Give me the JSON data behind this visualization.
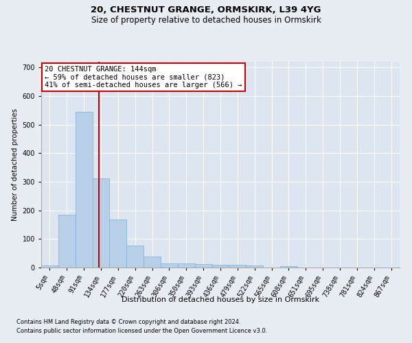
{
  "title1": "20, CHESTNUT GRANGE, ORMSKIRK, L39 4YG",
  "title2": "Size of property relative to detached houses in Ormskirk",
  "xlabel": "Distribution of detached houses by size in Ormskirk",
  "ylabel": "Number of detached properties",
  "categories": [
    "5sqm",
    "48sqm",
    "91sqm",
    "134sqm",
    "177sqm",
    "220sqm",
    "263sqm",
    "306sqm",
    "350sqm",
    "393sqm",
    "436sqm",
    "479sqm",
    "522sqm",
    "565sqm",
    "608sqm",
    "651sqm",
    "695sqm",
    "738sqm",
    "781sqm",
    "824sqm",
    "867sqm"
  ],
  "values": [
    8,
    186,
    545,
    313,
    168,
    77,
    39,
    15,
    14,
    13,
    9,
    10,
    8,
    0,
    5,
    0,
    0,
    0,
    0,
    0,
    0
  ],
  "bar_color": "#b8cfe8",
  "bar_edge_color": "#7aafd4",
  "vline_x": 3,
  "vline_color": "#cc0000",
  "annotation_text": "20 CHESTNUT GRANGE: 144sqm\n← 59% of detached houses are smaller (823)\n41% of semi-detached houses are larger (566) →",
  "annotation_box_color": "white",
  "annotation_box_edge_color": "#cc0000",
  "ylim": [
    0,
    720
  ],
  "yticks": [
    0,
    100,
    200,
    300,
    400,
    500,
    600,
    700
  ],
  "footnote1": "Contains HM Land Registry data © Crown copyright and database right 2024.",
  "footnote2": "Contains public sector information licensed under the Open Government Licence v3.0.",
  "bg_color": "#e8edf4",
  "plot_bg_color": "#dce5f0",
  "title1_fontsize": 9.5,
  "title2_fontsize": 8.5,
  "xlabel_fontsize": 8,
  "ylabel_fontsize": 7.5,
  "tick_fontsize": 7,
  "footnote_fontsize": 6,
  "annotation_fontsize": 7.5
}
